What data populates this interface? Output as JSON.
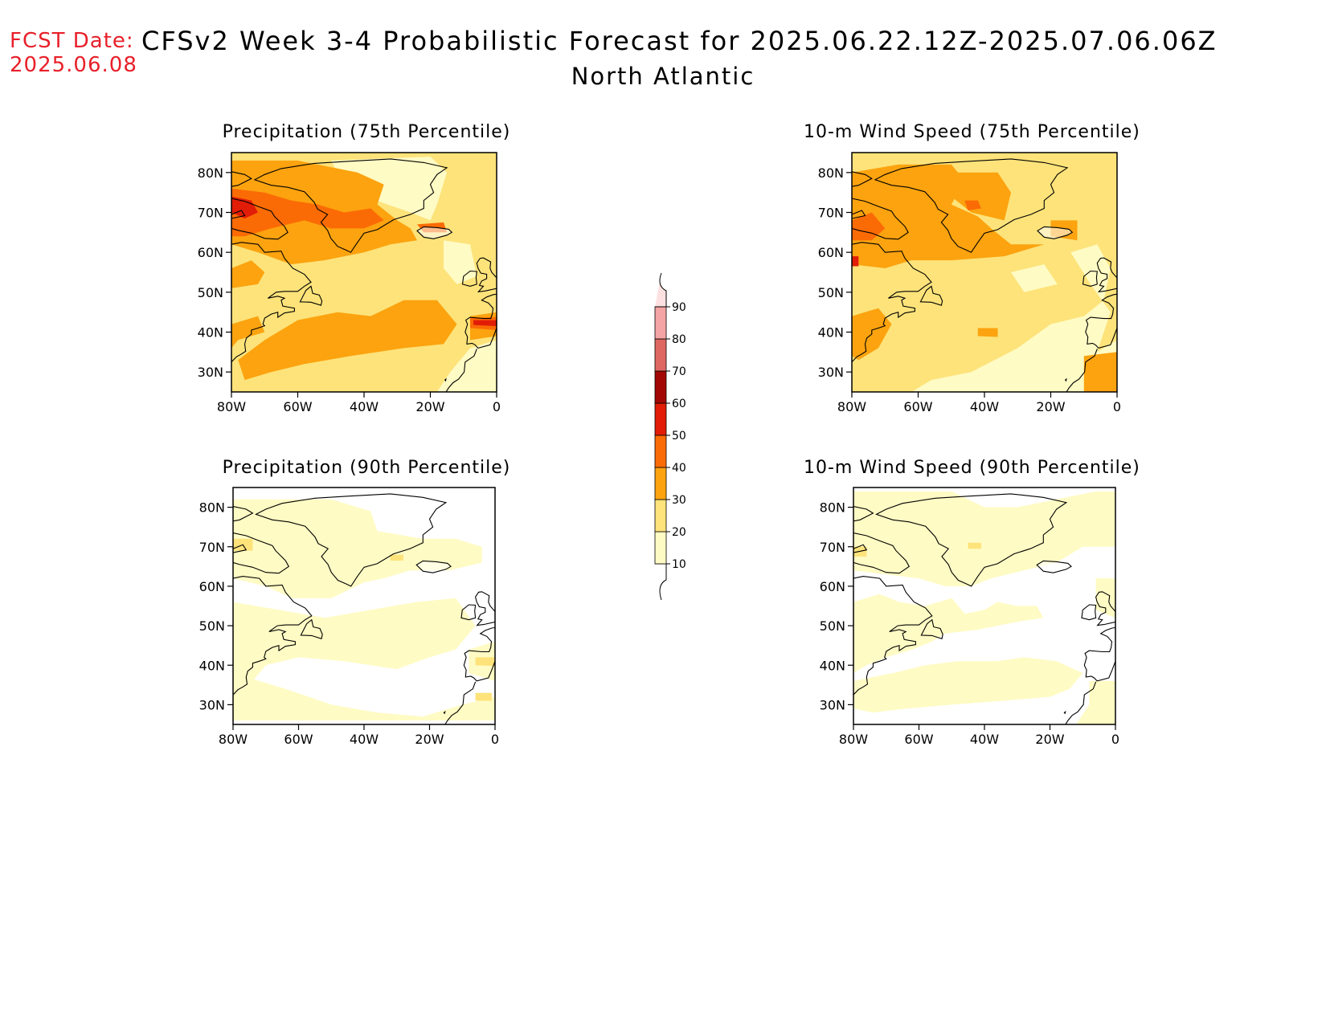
{
  "header": {
    "fcst_label": "FCST Date:",
    "fcst_date": "2025.06.08",
    "title": "CFSv2 Week 3-4 Probabilistic Forecast for 2025.06.22.12Z-2025.07.06.06Z",
    "subtitle": "North Atlantic"
  },
  "panels": [
    {
      "id": "precip75",
      "title": "Precipitation (75th Percentile)",
      "variable": "precipitation",
      "percentile": 75
    },
    {
      "id": "wind75",
      "title": "10-m Wind Speed (75th Percentile)",
      "variable": "wind",
      "percentile": 75
    },
    {
      "id": "precip90",
      "title": "Precipitation (90th Percentile)",
      "variable": "precipitation",
      "percentile": 90
    },
    {
      "id": "wind90",
      "title": "10-m Wind Speed (90th Percentile)",
      "variable": "wind",
      "percentile": 90
    }
  ],
  "axes": {
    "lat_ticks": [
      "30N",
      "40N",
      "50N",
      "60N",
      "70N",
      "80N"
    ],
    "lon_ticks": [
      "80W",
      "60W",
      "40W",
      "20W",
      "0"
    ],
    "lat_range": [
      25,
      85
    ],
    "lon_range": [
      -80,
      0
    ]
  },
  "colorbar": {
    "levels": [
      10,
      20,
      30,
      40,
      50,
      60,
      70,
      80,
      90
    ],
    "labels": [
      "10",
      "20",
      "30",
      "40",
      "50",
      "60",
      "70",
      "80",
      "90"
    ],
    "colors": [
      "#fffbc4",
      "#fde37a",
      "#fca30f",
      "#fb6b05",
      "#e11d07",
      "#a30705",
      "#df6762",
      "#f4a4a4",
      "#fde1e1"
    ],
    "below_color": "#ffffff"
  },
  "shading_colors": {
    "c10": "#fffbc4",
    "c20": "#fde37a",
    "c30": "#fca30f",
    "c40": "#fb6b05",
    "c50": "#e11d07"
  }
}
